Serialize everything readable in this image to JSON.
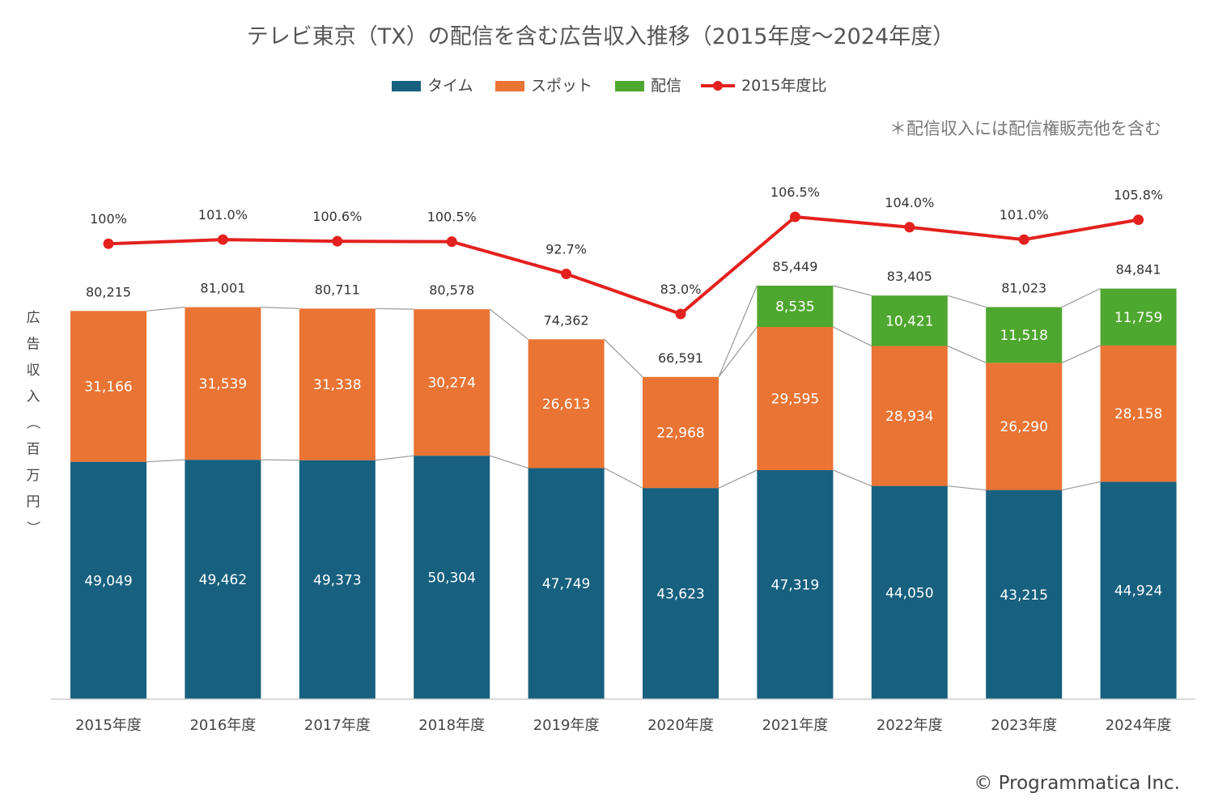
{
  "chart_data": {
    "type": "bar",
    "stacked": true,
    "title": "テレビ東京（TX）の配信を含む広告収入推移（2015年度〜2024年度）",
    "note": "＊配信収入には配信権販売他を含む",
    "ylabel": "広告収入（百万円）",
    "xlabel": "",
    "credit": "© Programmatica Inc.",
    "categories": [
      "2015年度",
      "2016年度",
      "2017年度",
      "2018年度",
      "2019年度",
      "2020年度",
      "2021年度",
      "2022年度",
      "2023年度",
      "2024年度"
    ],
    "series": [
      {
        "name": "タイム",
        "color": "#17607f",
        "values": [
          49049,
          49462,
          49373,
          50304,
          47749,
          43623,
          47319,
          44050,
          43215,
          44924
        ],
        "labels": [
          "49,049",
          "49,462",
          "49,373",
          "50,304",
          "47,749",
          "43,623",
          "47,319",
          "44,050",
          "43,215",
          "44,924"
        ]
      },
      {
        "name": "スポット",
        "color": "#e97434",
        "values": [
          31166,
          31539,
          31338,
          30274,
          26613,
          22968,
          29595,
          28934,
          26290,
          28158
        ],
        "labels": [
          "31,166",
          "31,539",
          "31,338",
          "30,274",
          "26,613",
          "22,968",
          "29,595",
          "28,934",
          "26,290",
          "28,158"
        ]
      },
      {
        "name": "配信",
        "color": "#4ea72e",
        "values": [
          null,
          null,
          null,
          null,
          null,
          null,
          8535,
          10421,
          11518,
          11759
        ],
        "labels": [
          "",
          "",
          "",
          "",
          "",
          "",
          "8,535",
          "10,421",
          "11,518",
          "11,759"
        ]
      }
    ],
    "totals": [
      "80,215",
      "81,001",
      "80,711",
      "80,578",
      "74,362",
      "66,591",
      "85,449",
      "83,405",
      "81,023",
      "84,841"
    ],
    "line": {
      "name": "2015年度比",
      "color": "#e3211e",
      "values": [
        100,
        101.0,
        100.6,
        100.5,
        92.7,
        83.0,
        106.5,
        104.0,
        101.0,
        105.8
      ],
      "labels": [
        "100%",
        "101.0%",
        "100.6%",
        "100.5%",
        "92.7%",
        "83.0%",
        "106.5%",
        "104.0%",
        "101.0%",
        "105.8%"
      ]
    },
    "ylim": [
      0,
      85449
    ],
    "legend_position": "top-center",
    "grid": false
  }
}
